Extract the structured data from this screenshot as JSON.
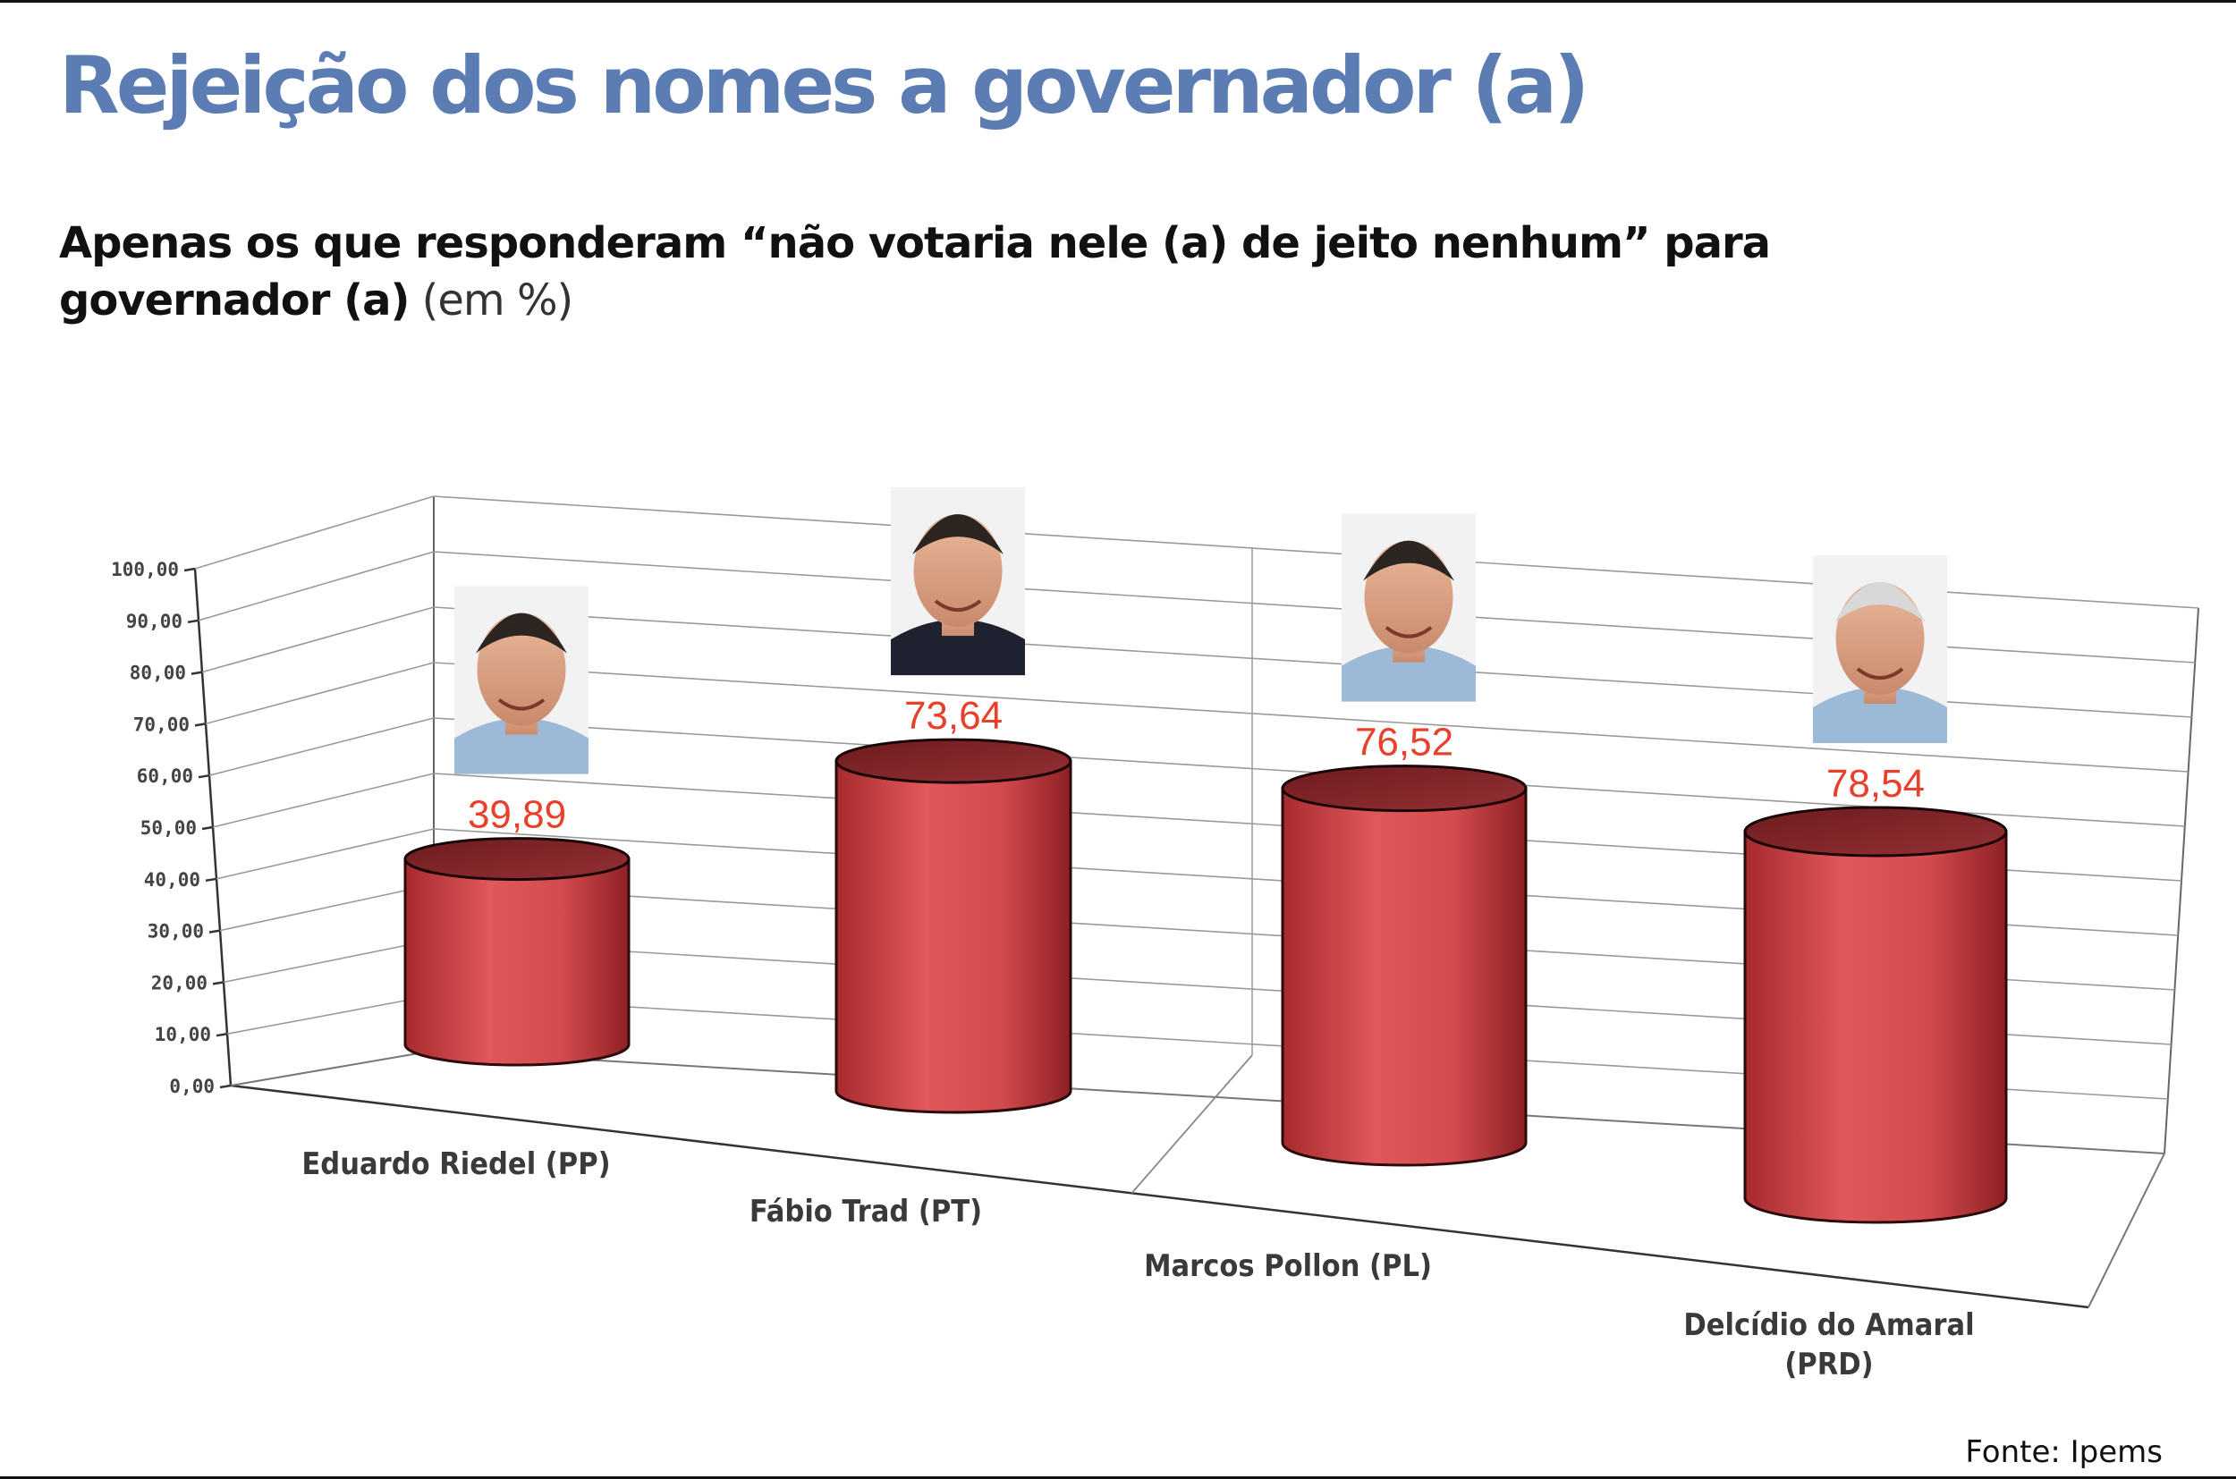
{
  "title": "Rejeição dos nomes a governador (a)",
  "subtitle": {
    "bold": "Apenas os que responderam “não votaria nele (a) de jeito nenhum” para governador (a)",
    "light": "(em %)"
  },
  "source": "Fonte: Ipems",
  "colors": {
    "title": "#5b7db3",
    "bar": "#d64f52",
    "value_label": "#e8402a"
  },
  "chart_data": {
    "type": "bar",
    "categories": [
      "Eduardo Riedel (PP)",
      "Fábio Trad (PT)",
      "Marcos Pollon (PL)",
      "Delcídio do Amaral (PRD)"
    ],
    "series": [
      {
        "values": [
          39.89,
          73.64,
          76.52,
          78.54
        ]
      }
    ],
    "value_labels": [
      "39,89",
      "73,64",
      "76,52",
      "78,54"
    ],
    "ylim": [
      0,
      100
    ],
    "ytick_labels": [
      "0,00",
      "10,00",
      "20,00",
      "30,00",
      "40,00",
      "50,00",
      "60,00",
      "70,00",
      "80,00",
      "90,00",
      "100,00"
    ],
    "grid": true,
    "style": "3d-cylinder",
    "candidate_photos": [
      "person-photo",
      "person-photo",
      "person-photo",
      "person-photo"
    ]
  }
}
